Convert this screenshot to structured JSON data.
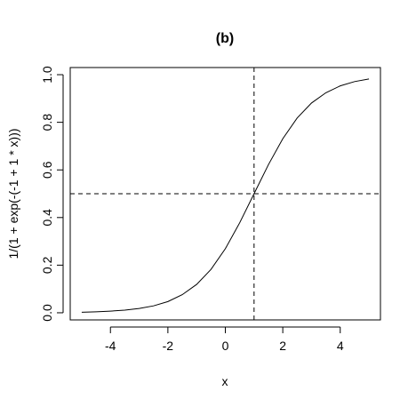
{
  "chart_data": {
    "type": "line",
    "title": "(b)",
    "xlabel": "x",
    "ylabel": "1/(1 + exp(-(-1 + 1 * x)))",
    "xlim": [
      -5.4,
      5.4
    ],
    "ylim": [
      -0.03,
      1.03
    ],
    "x_ticks": [
      -4,
      -2,
      0,
      2,
      4
    ],
    "x_tick_labels": [
      "-4",
      "-2",
      "0",
      "2",
      "4"
    ],
    "y_ticks": [
      0.0,
      0.2,
      0.4,
      0.6,
      0.8,
      1.0
    ],
    "y_tick_labels": [
      "0.0",
      "0.2",
      "0.4",
      "0.6",
      "0.8",
      "1.0"
    ],
    "series": [
      {
        "x": [
          -5.0,
          -4.5,
          -4.0,
          -3.5,
          -3.0,
          -2.5,
          -2.0,
          -1.5,
          -1.0,
          -0.5,
          0.0,
          0.5,
          1.0,
          1.5,
          2.0,
          2.5,
          3.0,
          3.5,
          4.0,
          4.5,
          5.0
        ],
        "y": [
          0.002,
          0.004,
          0.007,
          0.011,
          0.018,
          0.029,
          0.047,
          0.076,
          0.119,
          0.182,
          0.269,
          0.378,
          0.5,
          0.622,
          0.731,
          0.818,
          0.881,
          0.924,
          0.953,
          0.971,
          0.982
        ],
        "style": "solid",
        "color": "#000000"
      }
    ],
    "reference_lines": [
      {
        "orientation": "vertical",
        "value": 1,
        "style": "dashed"
      },
      {
        "orientation": "horizontal",
        "value": 0.5,
        "style": "dashed"
      }
    ],
    "grid": false,
    "legend": "none"
  }
}
